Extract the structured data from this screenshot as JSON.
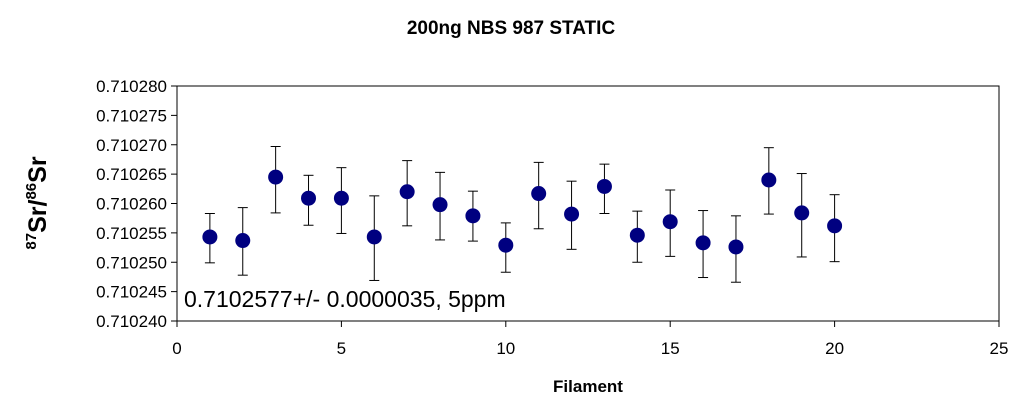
{
  "chart_data": {
    "type": "scatter",
    "title": "200ng NBS 987 STATIC",
    "xlabel": "Filament",
    "ylabel": {
      "sup1": "87",
      "base1": "Sr/",
      "sup2": "86",
      "base2": "Sr"
    },
    "xlim": [
      0,
      25
    ],
    "xticks": [
      0,
      5,
      10,
      15,
      20,
      25
    ],
    "ylim": [
      0.71024,
      0.71028
    ],
    "yticks": [
      "0.710240",
      "0.710245",
      "0.710250",
      "0.710255",
      "0.710260",
      "0.710265",
      "0.710270",
      "0.710275",
      "0.710280"
    ],
    "grid": false,
    "annotation": "0.7102577+/- 0.0000035, 5ppm",
    "marker_color": "#000080",
    "points": [
      {
        "x": 1,
        "y": 0.7102543,
        "low": 0.7102499,
        "high": 0.7102583
      },
      {
        "x": 2,
        "y": 0.7102537,
        "low": 0.7102478,
        "high": 0.7102593
      },
      {
        "x": 3,
        "y": 0.7102645,
        "low": 0.7102584,
        "high": 0.7102697
      },
      {
        "x": 4,
        "y": 0.7102609,
        "low": 0.7102563,
        "high": 0.7102648
      },
      {
        "x": 5,
        "y": 0.7102609,
        "low": 0.7102549,
        "high": 0.7102661
      },
      {
        "x": 6,
        "y": 0.7102543,
        "low": 0.7102469,
        "high": 0.7102613
      },
      {
        "x": 7,
        "y": 0.710262,
        "low": 0.7102562,
        "high": 0.7102673
      },
      {
        "x": 8,
        "y": 0.7102598,
        "low": 0.7102538,
        "high": 0.7102653
      },
      {
        "x": 9,
        "y": 0.7102579,
        "low": 0.7102536,
        "high": 0.7102621
      },
      {
        "x": 10,
        "y": 0.7102529,
        "low": 0.7102483,
        "high": 0.7102567
      },
      {
        "x": 11,
        "y": 0.7102617,
        "low": 0.7102557,
        "high": 0.710267
      },
      {
        "x": 12,
        "y": 0.7102582,
        "low": 0.7102522,
        "high": 0.7102638
      },
      {
        "x": 13,
        "y": 0.7102629,
        "low": 0.7102583,
        "high": 0.7102667
      },
      {
        "x": 14,
        "y": 0.7102546,
        "low": 0.71025,
        "high": 0.7102587
      },
      {
        "x": 15,
        "y": 0.7102569,
        "low": 0.710251,
        "high": 0.7102623
      },
      {
        "x": 16,
        "y": 0.7102533,
        "low": 0.7102474,
        "high": 0.7102588
      },
      {
        "x": 17,
        "y": 0.7102526,
        "low": 0.7102466,
        "high": 0.7102579
      },
      {
        "x": 18,
        "y": 0.710264,
        "low": 0.7102582,
        "high": 0.7102695
      },
      {
        "x": 19,
        "y": 0.7102584,
        "low": 0.7102509,
        "high": 0.7102651
      },
      {
        "x": 20,
        "y": 0.7102562,
        "low": 0.7102501,
        "high": 0.7102615
      }
    ]
  }
}
